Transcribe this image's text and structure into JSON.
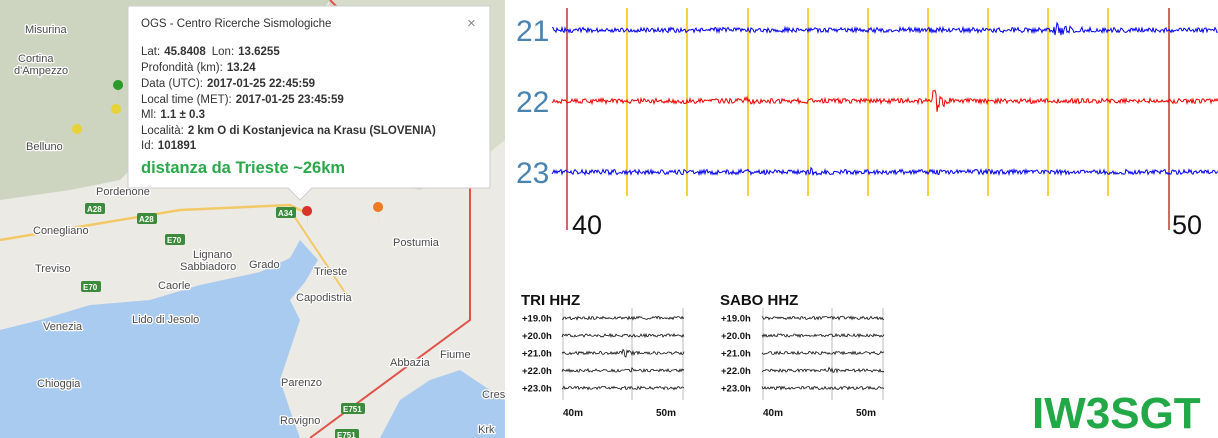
{
  "map": {
    "labels": [
      "Misurina",
      "Cortina",
      "d'Ampezzo",
      "Belluno",
      "Pordenone",
      "Conegliano",
      "Treviso",
      "Venezia",
      "Chioggia",
      "Lido di Jesolo",
      "Lignano",
      "Sabbiadoro",
      "Grado",
      "Caorle",
      "Trieste",
      "Capodistria",
      "Postumia",
      "Abbazia",
      "Fiume",
      "Parenzo",
      "Rovigno",
      "Cres",
      "Krk"
    ],
    "roads": [
      "A28",
      "A28",
      "A34",
      "E70",
      "E70",
      "E751",
      "E751"
    ]
  },
  "popup": {
    "title": "OGS - Centro Ricerche Sismologiche",
    "close": "×",
    "lines": [
      [
        {
          "label": "Lat:",
          "value": "45.8408"
        },
        {
          "label": "Lon:",
          "value": "13.6255"
        }
      ],
      [
        {
          "label": "Profondità (km):",
          "value": "13.24"
        }
      ],
      [
        {
          "label": "Data (UTC):",
          "value": "2017-01-25 22:45:59"
        }
      ],
      [
        {
          "label": "Local time (MET):",
          "value": "2017-01-25 23:45:59"
        }
      ],
      [
        {
          "label": "Ml:",
          "value": "1.1 ± 0.3"
        }
      ],
      [
        {
          "label": "Località:",
          "value": "2 km O di Kostanjevica na Krasu (SLOVENIA)"
        }
      ],
      [
        {
          "label": "Id:",
          "value": "101891"
        }
      ]
    ],
    "note": "distanza da Trieste ~26km"
  },
  "seismogram": {
    "rows": [
      "21",
      "22",
      "23"
    ],
    "times": [
      "40",
      "50"
    ]
  },
  "helicorders": [
    {
      "title": "TRI HHZ",
      "rows": [
        "+19.0h",
        "+20.0h",
        "+21.0h",
        "+22.0h",
        "+23.0h"
      ],
      "times": [
        "40m",
        "50m"
      ]
    },
    {
      "title": "SABO HHZ",
      "rows": [
        "+19.0h",
        "+20.0h",
        "+21.0h",
        "+22.0h",
        "+23.0h"
      ],
      "times": [
        "40m",
        "50m"
      ]
    }
  ],
  "callsign": "IW3SGT"
}
